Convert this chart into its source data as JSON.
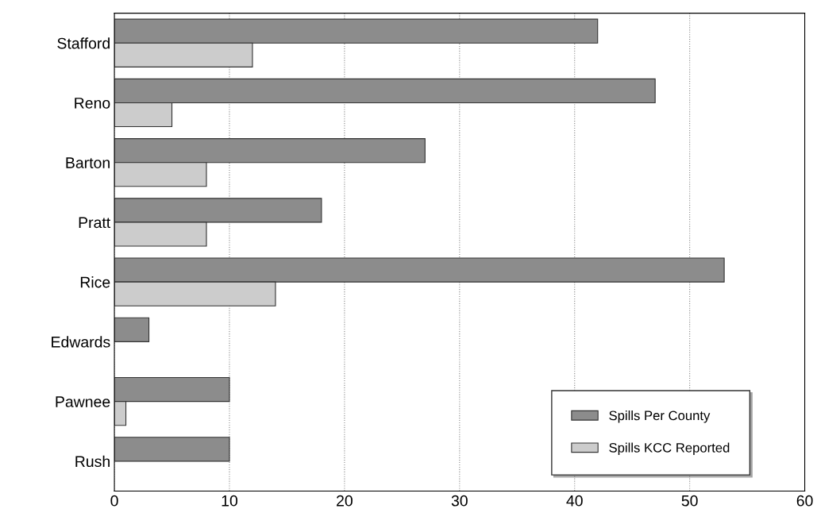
{
  "chart_data": {
    "type": "bar",
    "orientation": "horizontal",
    "categories": [
      "Stafford",
      "Reno",
      "Barton",
      "Pratt",
      "Rice",
      "Edwards",
      "Pawnee",
      "Rush"
    ],
    "series": [
      {
        "name": "Spills Per County",
        "color": "#8c8c8c",
        "values": [
          42,
          47,
          27,
          18,
          53,
          3,
          10,
          10
        ]
      },
      {
        "name": "Spills KCC Reported",
        "color": "#cccccc",
        "values": [
          12,
          5,
          8,
          8,
          14,
          0,
          1,
          0
        ]
      }
    ],
    "xlim": [
      0,
      60
    ],
    "xticks": [
      0,
      10,
      20,
      30,
      40,
      50,
      60
    ],
    "grid": "x",
    "legend": "bottom right"
  }
}
